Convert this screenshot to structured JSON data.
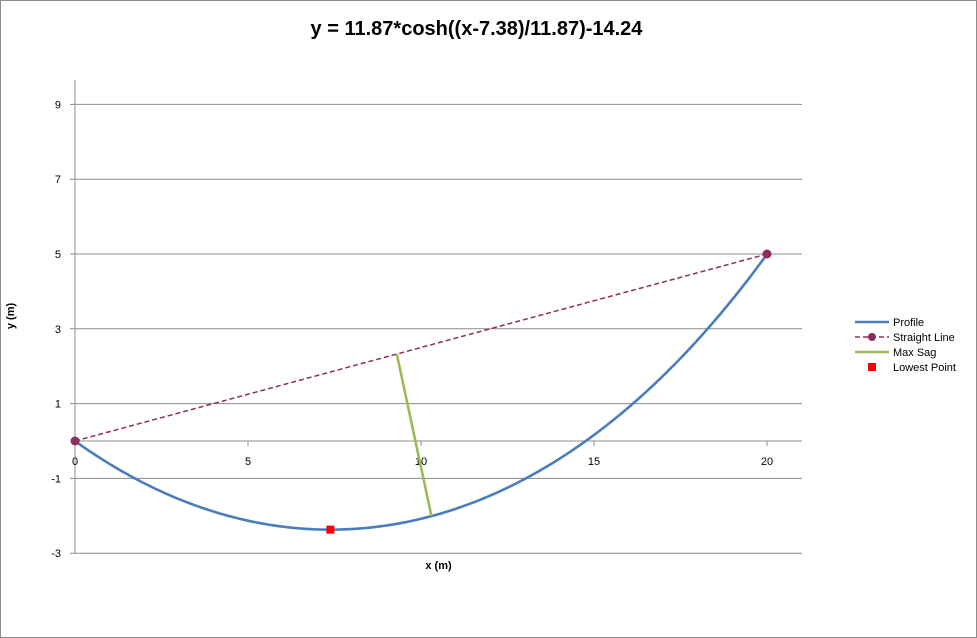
{
  "chart_data": {
    "type": "line",
    "title": "y = 11.87*cosh((x-7.38)/11.87)-14.24",
    "xlabel": "x (m)",
    "ylabel": "y (m)",
    "xlim": [
      0,
      21
    ],
    "ylim": [
      -3,
      10
    ],
    "x_ticks": [
      0,
      5,
      10,
      15,
      20
    ],
    "y_ticks": [
      -3,
      -1,
      1,
      3,
      5,
      7,
      9
    ],
    "grid": "horizontal",
    "legend_position": "right",
    "series": [
      {
        "name": "Profile",
        "style": "solid",
        "color": "#4a7ebb",
        "x": [
          0,
          1,
          2,
          3,
          4,
          5,
          6,
          7,
          7.38,
          8,
          9,
          10,
          11,
          12,
          13,
          14,
          15,
          16,
          17,
          18,
          19,
          20
        ],
        "y": [
          0,
          -0.45,
          -1.14,
          -1.6,
          -1.93,
          -2.13,
          -2.24,
          -2.37,
          -2.37,
          -2.35,
          -2.26,
          -2.06,
          -1.77,
          -1.37,
          -0.87,
          -0.27,
          0.27,
          0.92,
          1.89,
          2.75,
          3.73,
          5.0
        ]
      },
      {
        "name": "Straight Line",
        "style": "dashed",
        "color": "#8b2e5f",
        "marker": "circle",
        "x": [
          0,
          20
        ],
        "y": [
          0,
          5
        ]
      },
      {
        "name": "Max Sag",
        "style": "solid",
        "color": "#9bbb59",
        "x": [
          9.3,
          10.3
        ],
        "y": [
          2.33,
          -2.0
        ]
      },
      {
        "name": "Lowest Point",
        "style": "marker",
        "color": "#ff0000",
        "marker": "square",
        "x": [
          7.38
        ],
        "y": [
          -2.37
        ]
      }
    ]
  }
}
